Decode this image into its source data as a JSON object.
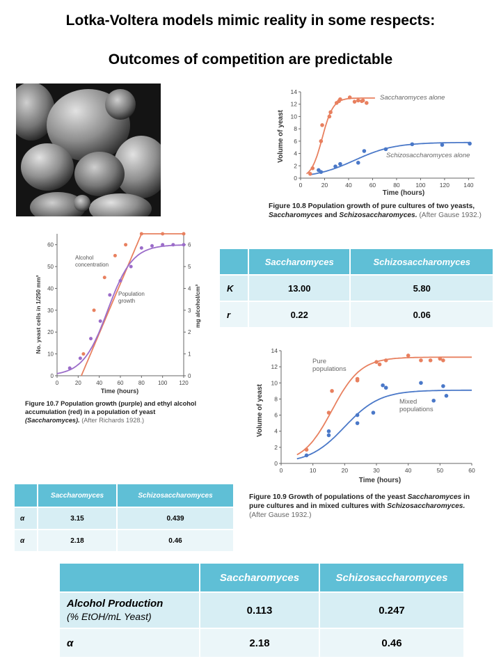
{
  "title_line1": "Lotka-Voltera models mimic reality in some respects:",
  "title_line2": "Outcomes of competition are predictable",
  "fig108": {
    "ylabel": "Volume of yeast",
    "xlabel": "Time (hours)",
    "label_sacc": "Saccharomyces alone",
    "label_schizo": "Schizosaccharomyces alone",
    "yticks": [
      "0",
      "2",
      "4",
      "6",
      "8",
      "10",
      "12",
      "14"
    ],
    "xticks": [
      "0",
      "20",
      "40",
      "60",
      "80",
      "100",
      "120",
      "140"
    ],
    "caption_fig": "Figure 10.8",
    "caption_text": "Population growth of pure cultures of two yeasts,",
    "caption_sp1": "Saccharomyces",
    "caption_and": "and",
    "caption_sp2": "Schizosaccharomyces.",
    "caption_after": "(After Gause 1932.)"
  },
  "fig107": {
    "ylabel": "No. yeast cells in 1/250 mm³",
    "ylabel_right": "mg alcohol/cm³",
    "xlabel": "Time (hours)",
    "label_alcohol_1": "Alcohol",
    "label_alcohol_2": "concentration",
    "label_pop_1": "Population",
    "label_pop_2": "growth",
    "yticks": [
      "0",
      "10",
      "20",
      "30",
      "40",
      "50",
      "60"
    ],
    "yticks_right": [
      "0",
      "1",
      "2",
      "3",
      "4",
      "5",
      "6"
    ],
    "xticks": [
      "0",
      "20",
      "40",
      "60",
      "80",
      "100",
      "120"
    ],
    "caption_fig": "Figure 10.7",
    "caption_text": "Population growth (purple) and ethyl alcohol accumulation (red) in a population of yeast",
    "caption_sp": "(Saccharomyces).",
    "caption_after": "(After Richards 1928.)"
  },
  "fig109": {
    "ylabel": "Volume of yeast",
    "xlabel": "Time (hours)",
    "label_pure_1": "Pure",
    "label_pure_2": "populations",
    "label_mixed_1": "Mixed",
    "label_mixed_2": "populations",
    "yticks": [
      "0",
      "2",
      "4",
      "6",
      "8",
      "10",
      "12",
      "14"
    ],
    "xticks": [
      "0",
      "10",
      "20",
      "30",
      "40",
      "50",
      "60"
    ],
    "caption_fig": "Figure 10.9",
    "caption_text1": "Growth of populations of the yeast",
    "caption_sp1": "Saccharomyces",
    "caption_text2": "in pure cultures and in mixed cultures with",
    "caption_sp2": "Schizosaccharomyces.",
    "caption_after": "(After Gause 1932.)"
  },
  "table_kr": {
    "headers": [
      "",
      "Saccharomyces",
      "Schizosaccharomyces"
    ],
    "rows": [
      {
        "label": "K",
        "v1": "13.00",
        "v2": "5.80"
      },
      {
        "label": "r",
        "v1": "0.22",
        "v2": "0.06"
      }
    ]
  },
  "table_alpha": {
    "headers": [
      "",
      "Saccharomyces",
      "Schizosaccharomyces"
    ],
    "rows": [
      {
        "label": "α",
        "v1": "3.15",
        "v2": "0.439"
      },
      {
        "label": "α",
        "v1": "2.18",
        "v2": "0.46"
      }
    ]
  },
  "table_alcohol": {
    "headers": [
      "",
      "Saccharomyces",
      "Schizosaccharomyces"
    ],
    "row1_label": "Alcohol Production",
    "row1_sublabel": "(% EtOH/mL Yeast)",
    "row1_v1": "0.113",
    "row1_v2": "0.247",
    "row2_label": "α",
    "row2_v1": "2.18",
    "row2_v2": "0.46"
  },
  "colors": {
    "red": "#e8805f",
    "blue": "#4a78c8",
    "purple": "#9b6cc9",
    "table_header": "#5fbfd6",
    "table_row": "#d7eef4"
  },
  "chart_data": [
    {
      "type": "scatter",
      "x": [],
      "series": [
        {
          "name": "Saccharomyces alone",
          "points": [
            [
              8,
              0.7
            ],
            [
              10,
              1.6
            ],
            [
              17,
              6.0
            ],
            [
              18,
              8.6
            ],
            [
              24,
              10.0
            ],
            [
              25,
              10.7
            ],
            [
              30,
              12.2
            ],
            [
              32,
              12.5
            ],
            [
              33,
              12.8
            ],
            [
              41,
              13.1
            ],
            [
              45,
              12.4
            ],
            [
              48,
              12.6
            ],
            [
              51,
              12.5
            ],
            [
              52,
              12.6
            ],
            [
              55,
              12.2
            ]
          ]
        },
        {
          "name": "Schizosaccharomyces alone",
          "points": [
            [
              15,
              1.3
            ],
            [
              17,
              1.0
            ],
            [
              29,
              1.9
            ],
            [
              33,
              2.3
            ],
            [
              48,
              2.5
            ],
            [
              53,
              4.4
            ],
            [
              71,
              4.7
            ],
            [
              93,
              5.5
            ],
            [
              118,
              5.4
            ],
            [
              141,
              5.6
            ]
          ]
        }
      ],
      "xlabel": "Time (hours)",
      "ylabel": "Volume of yeast",
      "xlim": [
        0,
        145
      ],
      "ylim": [
        0,
        14
      ]
    },
    {
      "type": "scatter",
      "series": [
        {
          "name": "Alcohol concentration",
          "points": [
            [
              25,
              1.0
            ],
            [
              35,
              3.0
            ],
            [
              45,
              4.5
            ],
            [
              55,
              5.5
            ],
            [
              65,
              6.0
            ],
            [
              80,
              6.5
            ],
            [
              100,
              6.5
            ],
            [
              120,
              6.5
            ]
          ]
        },
        {
          "name": "Population growth",
          "points": [
            [
              12,
              3.5
            ],
            [
              22,
              8.0
            ],
            [
              32,
              17.0
            ],
            [
              41,
              25.0
            ],
            [
              50,
              37.0
            ],
            [
              60,
              43.5
            ],
            [
              70,
              50.0
            ],
            [
              80,
              58.5
            ],
            [
              90,
              59.5
            ],
            [
              100,
              60.0
            ],
            [
              110,
              60.0
            ],
            [
              120,
              60.0
            ]
          ]
        }
      ],
      "xlabel": "Time (hours)",
      "ylabel": "No. yeast cells in 1/250 mm³",
      "xlim": [
        0,
        120
      ],
      "ylim": [
        0,
        65
      ]
    },
    {
      "type": "scatter",
      "series": [
        {
          "name": "Pure populations",
          "points": [
            [
              8,
              1.7
            ],
            [
              15,
              6.3
            ],
            [
              16,
              9.0
            ],
            [
              24,
              10.3
            ],
            [
              24,
              10.5
            ],
            [
              30,
              12.6
            ],
            [
              31,
              12.3
            ],
            [
              33,
              12.8
            ],
            [
              40,
              13.4
            ],
            [
              44,
              12.8
            ],
            [
              47,
              12.8
            ],
            [
              50,
              13.0
            ],
            [
              51,
              12.8
            ]
          ]
        },
        {
          "name": "Mixed populations",
          "points": [
            [
              8,
              1.0
            ],
            [
              15,
              3.5
            ],
            [
              15,
              4.0
            ],
            [
              24,
              5.0
            ],
            [
              24,
              6.0
            ],
            [
              29,
              6.3
            ],
            [
              32,
              9.7
            ],
            [
              33,
              9.4
            ],
            [
              44,
              10.0
            ],
            [
              48,
              7.8
            ],
            [
              51,
              9.6
            ],
            [
              52,
              8.4
            ]
          ]
        }
      ],
      "xlabel": "Time (hours)",
      "ylabel": "Volume of yeast",
      "xlim": [
        0,
        60
      ],
      "ylim": [
        0,
        14
      ]
    }
  ]
}
